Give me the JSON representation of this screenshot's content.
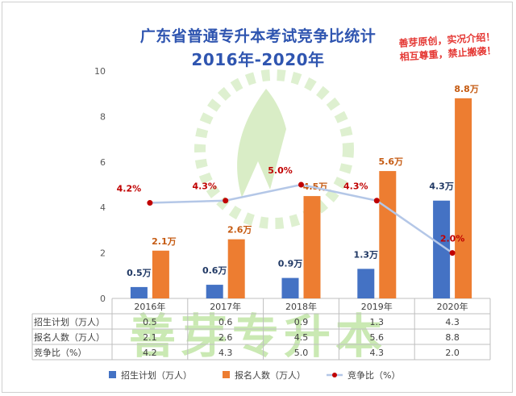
{
  "title_line1": "广东省普通专升本考试竞争比统计",
  "title_line2": "2016年-2020年",
  "note_line1": "善芽原创，实况介绍！",
  "note_line2": "相互尊重，禁止搬袭！",
  "watermark": "善芽专升本",
  "colors": {
    "plan": "#4472c4",
    "applicants": "#ed7d31",
    "ratio_line": "#b4c7e7",
    "ratio_dot": "#c00000",
    "ratio_label": "#c00000",
    "title": "#2f55b0"
  },
  "chart_data": {
    "type": "bar",
    "categories": [
      "2016年",
      "2017年",
      "2018年",
      "2019年",
      "2020年"
    ],
    "ylim": [
      0,
      10
    ],
    "yticks": [
      0,
      2,
      4,
      6,
      8,
      10
    ],
    "series": [
      {
        "name": "招生计划（万人）",
        "values": [
          0.5,
          0.6,
          0.9,
          1.3,
          4.3
        ],
        "labels": [
          "0.5万",
          "0.6万",
          "0.9万",
          "1.3万",
          "4.3万"
        ]
      },
      {
        "name": "报名人数（万人）",
        "values": [
          2.1,
          2.6,
          4.5,
          5.6,
          8.8
        ],
        "labels": [
          "2.1万",
          "2.6万",
          "4.5万",
          "5.6万",
          "8.8万"
        ]
      },
      {
        "name": "竞争比（%）",
        "type": "line",
        "values": [
          4.2,
          4.3,
          5.0,
          4.3,
          2.0
        ],
        "labels": [
          "4.2%",
          "4.3%",
          "5.0%",
          "4.3%",
          "2.0%"
        ]
      }
    ],
    "table": {
      "rows": [
        {
          "label": "招生计划（万人）",
          "values": [
            "0.5",
            "0.6",
            "0.9",
            "1.3",
            "4.3"
          ]
        },
        {
          "label": "报名人数（万人）",
          "values": [
            "2.1",
            "2.6",
            "4.5",
            "5.6",
            "8.8"
          ]
        },
        {
          "label": "竞争比（%）",
          "values": [
            "4.2",
            "4.3",
            "5.0",
            "4.3",
            "2.0"
          ]
        }
      ]
    },
    "legend": [
      "招生计划（万人）",
      "报名人数（万人）",
      "竞争比（%）"
    ],
    "legend_position": "bottom",
    "grid": false
  }
}
